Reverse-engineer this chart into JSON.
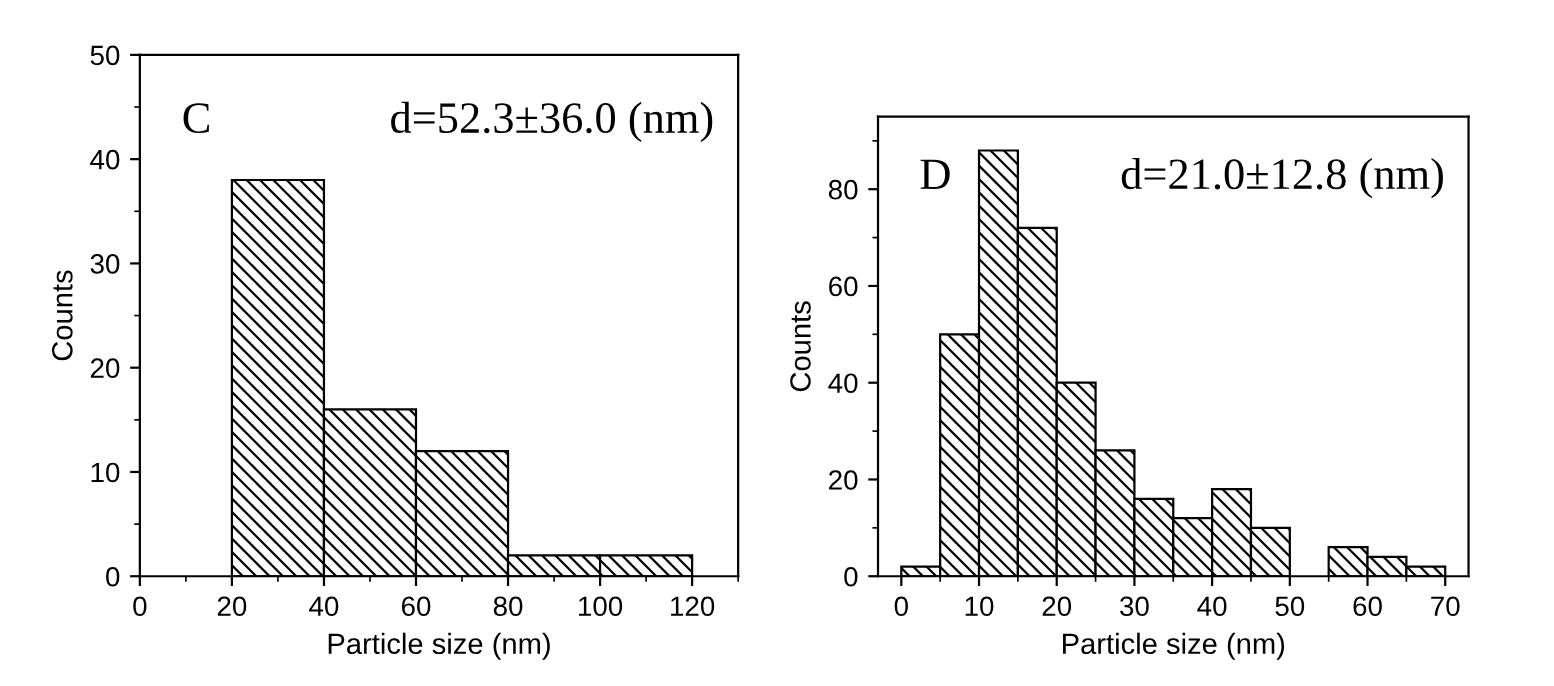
{
  "chart_data": [
    {
      "type": "histogram",
      "xlabel": "Particle size (nm)",
      "ylabel": "Counts",
      "annotations": [
        "C",
        "d=52.3±36.0 (nm)"
      ],
      "bins": [
        20,
        40,
        60,
        80,
        100,
        120
      ],
      "values": [
        38,
        16,
        12,
        2,
        2
      ],
      "color": "#000000",
      "xlim": [
        0,
        130
      ],
      "xticks": [
        0,
        20,
        40,
        60,
        80,
        100,
        120
      ],
      "ylim": [
        0,
        50
      ],
      "yticks": [
        0,
        10,
        20,
        30,
        40,
        50
      ],
      "grid": false,
      "legend": false
    },
    {
      "type": "histogram",
      "xlabel": "Particle size (nm)",
      "ylabel": "Counts",
      "annotations": [
        "D",
        "d=21.0±12.8 (nm)"
      ],
      "bins": [
        0,
        5,
        10,
        15,
        20,
        25,
        30,
        35,
        40,
        45,
        50,
        55,
        60,
        65,
        70
      ],
      "values": [
        2,
        50,
        88,
        72,
        40,
        26,
        16,
        12,
        18,
        10,
        0,
        6,
        4,
        2
      ],
      "color": "#000000",
      "xlim": [
        -3,
        73
      ],
      "xticks": [
        0,
        10,
        20,
        30,
        40,
        50,
        60,
        70
      ],
      "ylim": [
        0,
        95
      ],
      "yticks": [
        0,
        20,
        40,
        60,
        80
      ],
      "grid": false,
      "legend": false
    }
  ]
}
